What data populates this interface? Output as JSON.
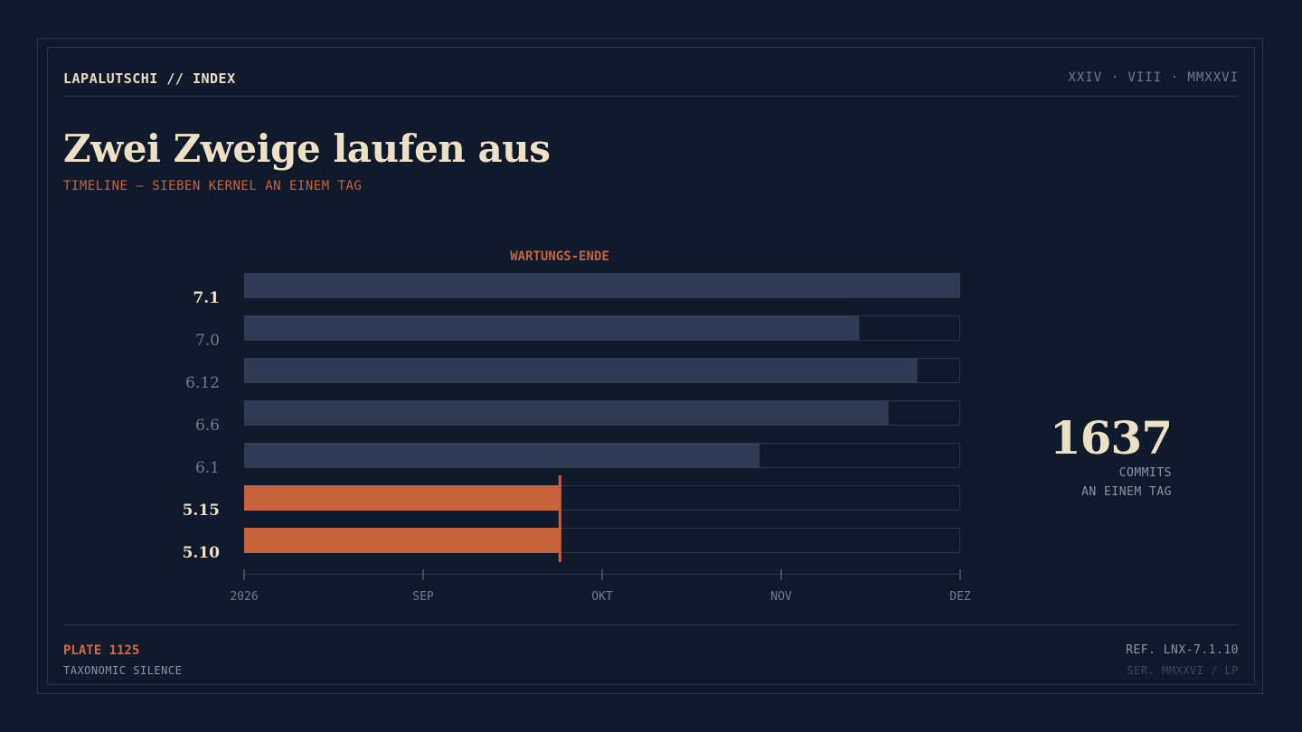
{
  "header": {
    "brand": "LAPALUTSCHI // INDEX",
    "date": "XXIV · VIII · MMXXVI"
  },
  "title": "Zwei Zweige laufen aus",
  "subtitle": "TIMELINE — SIEBEN KERNEL AN EINEM TAG",
  "stat": {
    "value": "1637",
    "label_line1": "COMMITS",
    "label_line2": "AN EINEM TAG"
  },
  "footer": {
    "plate": "PLATE 1125",
    "plate_sub": "TAXONOMIC SILENCE",
    "ref": "REF. LNX-7.1.10",
    "ser": "SER. MMXXVI / LP"
  },
  "colors": {
    "background": "#0f1a2c",
    "bar_active": "#2e3b52",
    "bar_ending": "#c8623b",
    "accent": "#c8623b"
  },
  "chart_data": {
    "type": "bar",
    "orientation": "horizontal",
    "marker_label": "WARTUNGS-ENDE",
    "marker_fraction": 0.441,
    "x_ticks": [
      "2026",
      "SEP",
      "OKT",
      "NOV",
      "DEZ"
    ],
    "x_range_fraction": [
      0,
      1
    ],
    "categories": [
      "7.1",
      "7.0",
      "6.12",
      "6.6",
      "6.1",
      "5.15",
      "5.10"
    ],
    "values": [
      1.0,
      0.859,
      0.94,
      0.9,
      0.72,
      0.441,
      0.441
    ],
    "status": [
      "active",
      "active",
      "active",
      "active",
      "active",
      "ending",
      "ending"
    ],
    "emphasized": [
      true,
      false,
      false,
      false,
      false,
      true,
      true
    ],
    "grid": false,
    "legend": "none"
  }
}
